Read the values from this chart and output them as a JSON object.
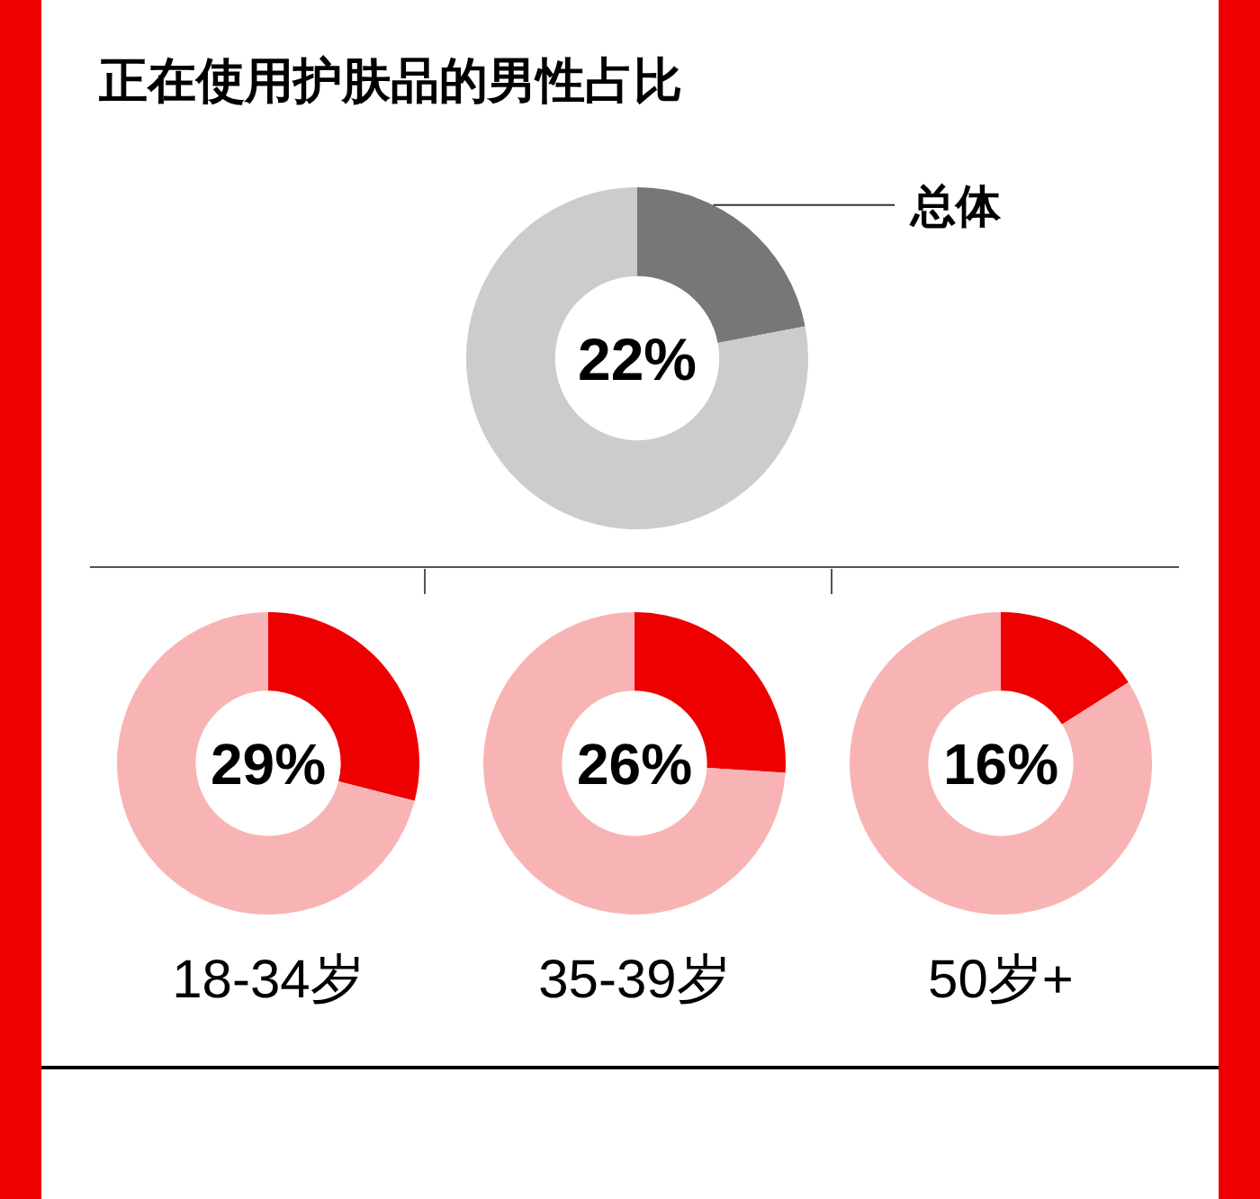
{
  "chart_data": [
    {
      "type": "donut",
      "title": "正在使用护肤品的男性占比",
      "categories": [
        "总体",
        null
      ],
      "values": [
        22,
        78
      ],
      "colors": [
        "#777777",
        "#cccccc"
      ],
      "annotations": [
        "22%"
      ]
    },
    {
      "type": "donut",
      "xlabel": "18-34岁",
      "categories": [
        null,
        null
      ],
      "values": [
        29,
        71
      ],
      "colors": [
        "#ee0000",
        "#f8b4b4"
      ],
      "annotations": [
        "29%"
      ]
    },
    {
      "type": "donut",
      "xlabel": "35-39岁",
      "categories": [
        null,
        null
      ],
      "values": [
        26,
        74
      ],
      "colors": [
        "#ee0000",
        "#f8b4b4"
      ],
      "annotations": [
        "26%"
      ]
    },
    {
      "type": "donut",
      "xlabel": "50岁+",
      "categories": [
        null,
        null
      ],
      "values": [
        16,
        84
      ],
      "colors": [
        "#ee0000",
        "#f8b4b4"
      ],
      "annotations": [
        "16%"
      ]
    }
  ]
}
